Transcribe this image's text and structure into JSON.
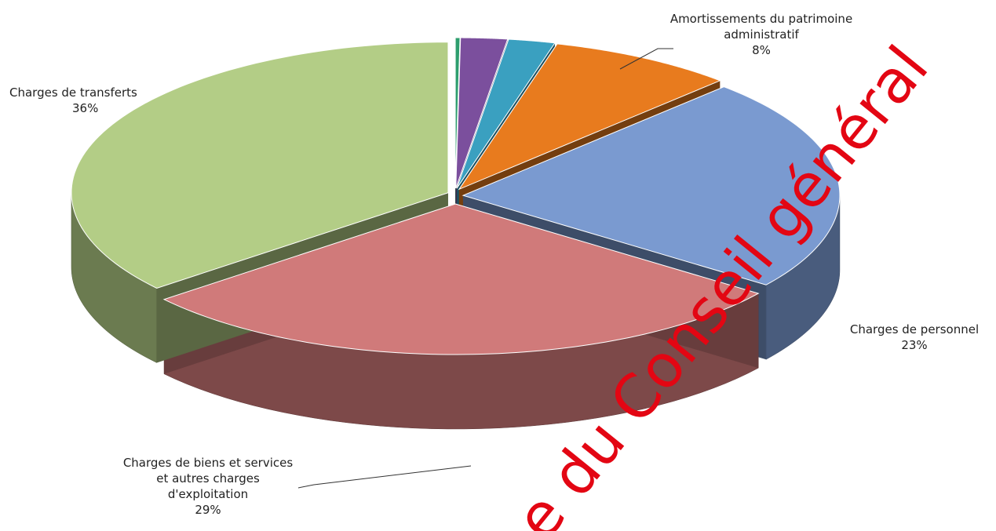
{
  "chart_data": {
    "type": "pie",
    "categories": [
      null,
      null,
      null,
      "Amortissements du patrimoine administratif",
      "Charges de personnel",
      "Charges de biens et services et autres charges d'exploitation",
      "Charges de transferts"
    ],
    "values": [
      0.2,
      2,
      2,
      8,
      23,
      29,
      36
    ],
    "value_labels": [
      null,
      null,
      null,
      "8%",
      "23%",
      "29%",
      "36%"
    ],
    "colors": [
      "#2e9e6e",
      "#7b4f9d",
      "#3aa0c0",
      "#e87b1e",
      "#7a9ad0",
      "#d07a7a",
      "#b3cd86"
    ],
    "annotation": "e du Conseil général"
  }
}
